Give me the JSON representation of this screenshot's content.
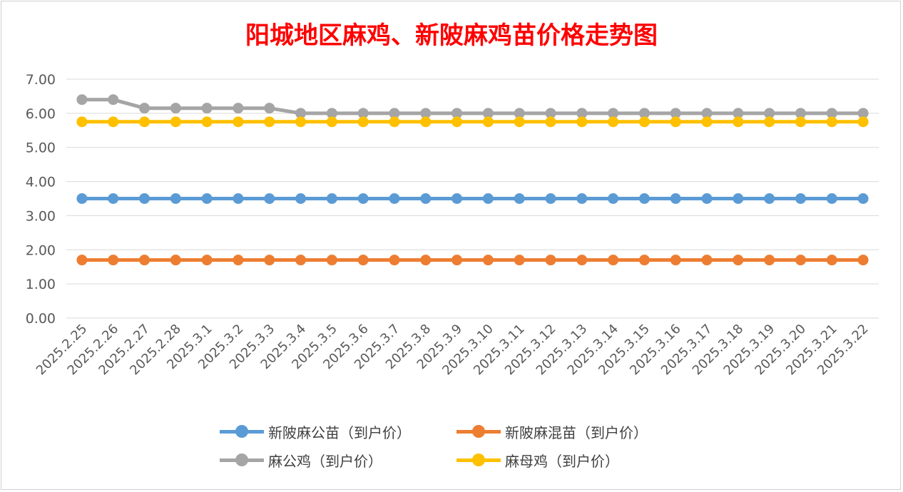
{
  "chart_data": {
    "type": "line",
    "title": "阳城地区麻鸡、新陂麻鸡苗价格走势图",
    "x": [
      "2025.2.25",
      "2025.2.26",
      "2025.2.27",
      "2025.2.28",
      "2025.3.1",
      "2025.3.2",
      "2025.3.3",
      "2025.3.4",
      "2025.3.5",
      "2025.3.6",
      "2025.3.7",
      "2025.3.8",
      "2025.3.9",
      "2025.3.10",
      "2025.3.11",
      "2025.3.12",
      "2025.3.13",
      "2025.3.14",
      "2025.3.15",
      "2025.3.16",
      "2025.3.17",
      "2025.3.18",
      "2025.3.19",
      "2025.3.20",
      "2025.3.21",
      "2025.3.22"
    ],
    "ylim": [
      0,
      7
    ],
    "yticks": [
      "0.00",
      "1.00",
      "2.00",
      "3.00",
      "4.00",
      "5.00",
      "6.00",
      "7.00"
    ],
    "grid": true,
    "legend_position": "bottom",
    "series": [
      {
        "name": "新陂麻公苗（到户价）",
        "color": "#5b9bd5",
        "values": [
          3.5,
          3.5,
          3.5,
          3.5,
          3.5,
          3.5,
          3.5,
          3.5,
          3.5,
          3.5,
          3.5,
          3.5,
          3.5,
          3.5,
          3.5,
          3.5,
          3.5,
          3.5,
          3.5,
          3.5,
          3.5,
          3.5,
          3.5,
          3.5,
          3.5,
          3.5
        ]
      },
      {
        "name": "新陂麻混苗（到户价）",
        "color": "#ed7d31",
        "values": [
          1.7,
          1.7,
          1.7,
          1.7,
          1.7,
          1.7,
          1.7,
          1.7,
          1.7,
          1.7,
          1.7,
          1.7,
          1.7,
          1.7,
          1.7,
          1.7,
          1.7,
          1.7,
          1.7,
          1.7,
          1.7,
          1.7,
          1.7,
          1.7,
          1.7,
          1.7
        ]
      },
      {
        "name": "麻公鸡（到户价）",
        "color": "#a5a5a5",
        "values": [
          6.4,
          6.4,
          6.15,
          6.15,
          6.15,
          6.15,
          6.15,
          6.0,
          6.0,
          6.0,
          6.0,
          6.0,
          6.0,
          6.0,
          6.0,
          6.0,
          6.0,
          6.0,
          6.0,
          6.0,
          6.0,
          6.0,
          6.0,
          6.0,
          6.0,
          6.0
        ]
      },
      {
        "name": "麻母鸡（到户价）",
        "color": "#ffc000",
        "values": [
          5.75,
          5.75,
          5.75,
          5.75,
          5.75,
          5.75,
          5.75,
          5.75,
          5.75,
          5.75,
          5.75,
          5.75,
          5.75,
          5.75,
          5.75,
          5.75,
          5.75,
          5.75,
          5.75,
          5.75,
          5.75,
          5.75,
          5.75,
          5.75,
          5.75,
          5.75
        ]
      }
    ]
  }
}
